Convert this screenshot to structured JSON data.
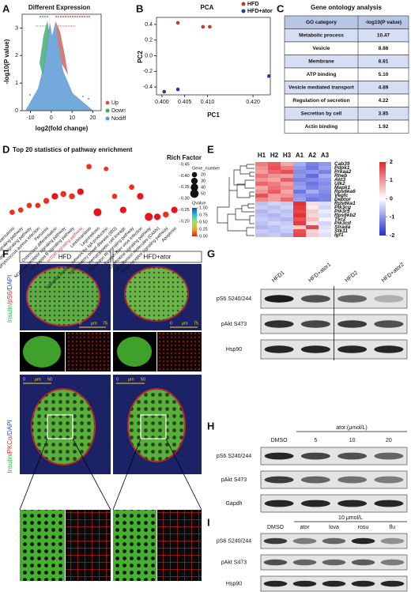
{
  "panel_letters": [
    "A",
    "B",
    "C",
    "D",
    "E",
    "F",
    "G",
    "H",
    "I"
  ],
  "chart_data": [
    {
      "type": "volcano",
      "title": "Different Expression",
      "x_label": "log2(fold change)",
      "y_label": "-log10(P value)",
      "xlim": [
        -14,
        24
      ],
      "ylim": [
        0,
        3.5
      ],
      "xticks": [
        -10,
        0,
        10,
        20
      ],
      "yticks": [
        0,
        1,
        2,
        3
      ],
      "legend": [
        {
          "name": "Up",
          "color": "#c95a5a"
        },
        {
          "name": "Down",
          "color": "#3aa66a"
        },
        {
          "name": "Nodiff",
          "color": "#5b9bd5"
        }
      ]
    },
    {
      "type": "scatter",
      "title": "PCA",
      "x_label": "PC1",
      "y_label": "PC2",
      "xlim": [
        0.3988,
        0.4238
      ],
      "ylim": [
        -0.5,
        0.49
      ],
      "xticks": [
        {
          "value": 0.4,
          "label": "0.400"
        },
        {
          "value": 0.405,
          "label": "0.405"
        },
        {
          "value": 0.41,
          "label": "0.410"
        },
        {
          "value": 0.42,
          "label": "0.420"
        }
      ],
      "yticks": [
        {
          "value": -0.4,
          "label": "-0.4"
        },
        {
          "value": -0.2,
          "label": "-0.2"
        },
        {
          "value": 0,
          "label": "0.0"
        },
        {
          "value": 0.2,
          "label": "0.2"
        },
        {
          "value": 0.4,
          "label": "0.4"
        }
      ],
      "series": [
        {
          "name": "HFD",
          "color": "#c0392b",
          "x": [
            0.4035,
            0.409,
            0.4105
          ],
          "values": [
            0.42,
            0.37,
            0.37
          ]
        },
        {
          "name": "HFD+ator",
          "color": "#2b35a8",
          "x": [
            0.4005,
            0.4035,
            0.4235
          ],
          "values": [
            -0.46,
            -0.43,
            -0.26
          ]
        }
      ]
    },
    {
      "type": "bubble",
      "title": "Top 20 statistics of pathway enrichment",
      "y_label": "Rich Factor",
      "categories": [
        "Tuberculosis",
        "Toll-like receptor signaling pathway",
        "T cell receptor signaling pathway",
        "Staphylococcus aureus infection",
        "Pertussis",
        "Osteoclast differentiation",
        "NOD-like receptor signaling pathway",
        "NF-kappa B signaling pathway",
        "mTOR signaling pathway",
        "Leishmaniasis",
        "Legionellosis",
        "Intestinal immune network for IgA production",
        "Inflammatory bowel disease (IBD)",
        "Hematopoietic cell lineage",
        "Fc epsilon RI signaling pathway",
        "Epstein-Barr virus infection",
        "Chemokine signaling pathway",
        "Cell adhesion molecules (CAMs)",
        "B cell receptor signaling pathway",
        "Apoptosis"
      ],
      "values": [
        0.24,
        0.25,
        0.27,
        0.27,
        0.29,
        0.31,
        0.32,
        0.31,
        0.33,
        0.44,
        0.24,
        0.43,
        0.31,
        0.25,
        0.35,
        0.31,
        0.22,
        0.22,
        0.23,
        0.25
      ],
      "sizes": [
        20,
        20,
        20,
        20,
        25,
        30,
        25,
        25,
        30,
        20,
        45,
        15,
        20,
        30,
        20,
        30,
        45,
        30,
        25,
        30
      ],
      "qvalues": [
        0.05,
        0.05,
        0.05,
        0.05,
        0.05,
        0,
        0.05,
        0.05,
        0,
        0.05,
        0,
        0.05,
        0.05,
        0,
        0.05,
        0,
        0,
        0,
        0.05,
        0
      ],
      "ylim": [
        0.19,
        0.46
      ],
      "yticks": [
        {
          "value": 0.2,
          "label": "0.20"
        },
        {
          "value": 0.25,
          "label": "0.25"
        },
        {
          "value": 0.3,
          "label": "0.30"
        },
        {
          "value": 0.35,
          "label": "0.35"
        },
        {
          "value": 0.4,
          "label": "0.40"
        },
        {
          "value": 0.45,
          "label": "0.45"
        }
      ],
      "highlight": {
        "category": "mTOR signaling pathway",
        "color": "#e0302a"
      },
      "size_legend": {
        "title": "Gene_number",
        "values": [
          20,
          30,
          40,
          50
        ]
      },
      "color_legend": {
        "title": "Qvalue",
        "colors": [
          "#e8141c",
          "#f5a623",
          "#a8e05f",
          "#29c6d9",
          "#1a3fd1"
        ],
        "ticks": [
          {
            "value": 0,
            "label": "0.00"
          },
          {
            "value": 0.25,
            "label": "0.25"
          },
          {
            "value": 0.5,
            "label": "0.50"
          },
          {
            "value": 0.75,
            "label": "0.75"
          },
          {
            "value": 1,
            "label": "1.00"
          }
        ]
      }
    },
    {
      "type": "heatmap",
      "columns": [
        "H1",
        "H2",
        "H3",
        "A1",
        "A2",
        "A3"
      ],
      "rows": [
        "Cab39",
        "Pdpk1",
        "Prkaa2",
        "Rheb",
        "Akt3",
        "Ulk2",
        "Mapk1",
        "Rps6ka6",
        "Vegfc",
        "Deptor",
        "Rps6ka1",
        "Pik3cg",
        "Pik3r5",
        "Rps6kb2",
        "Tsc2",
        "Pik3cd",
        "Strada",
        "Stk11",
        "Igf1"
      ],
      "values": [
        [
          1.2,
          1.5,
          0.8,
          -0.8,
          -1.2,
          -1.0
        ],
        [
          1.0,
          1.6,
          1.2,
          -1.0,
          -1.3,
          -0.9
        ],
        [
          0.9,
          1.4,
          1.6,
          -1.1,
          -1.0,
          -1.2
        ],
        [
          1.3,
          1.0,
          0.9,
          -1.0,
          -1.4,
          -0.8
        ],
        [
          1.0,
          0.8,
          1.5,
          -1.2,
          -1.1,
          -1.0
        ],
        [
          1.4,
          1.2,
          0.9,
          -1.0,
          -1.3,
          -1.1
        ],
        [
          0.8,
          1.3,
          1.1,
          -0.9,
          -1.2,
          -1.0
        ],
        [
          1.0,
          1.5,
          0.8,
          -1.3,
          -0.8,
          -1.1
        ],
        [
          1.6,
          0.9,
          1.0,
          -1.0,
          -1.1,
          -1.2
        ],
        [
          1.1,
          0.9,
          1.4,
          -0.9,
          -1.3,
          -1.2
        ],
        [
          -0.6,
          -0.4,
          -0.5,
          1.9,
          0.3,
          -0.3
        ],
        [
          -0.5,
          -0.6,
          -0.4,
          1.8,
          0.2,
          -0.4
        ],
        [
          -0.7,
          -0.5,
          -0.6,
          1.7,
          0.5,
          -0.2
        ],
        [
          -0.6,
          -0.7,
          -0.5,
          1.9,
          0.4,
          -0.3
        ],
        [
          -0.5,
          -0.6,
          -0.7,
          1.6,
          0.6,
          -0.1
        ],
        [
          -0.6,
          -0.4,
          -0.5,
          1.8,
          0.3,
          -0.4
        ],
        [
          -0.7,
          -0.6,
          -0.4,
          0.5,
          1.7,
          -0.3
        ],
        [
          -0.5,
          -0.6,
          -0.5,
          1.6,
          0.4,
          -0.2
        ],
        [
          -0.6,
          -0.5,
          -0.7,
          1.7,
          0.5,
          -0.3
        ]
      ],
      "colorlim": [
        -2,
        2
      ],
      "colorbar_ticks": [
        -2,
        -1,
        0,
        1,
        2
      ],
      "colors": [
        "#1f2fd6",
        "#ffffff",
        "#e3262a"
      ]
    }
  ],
  "table": {
    "title": "Gene ontology analysis",
    "header": [
      "GO category",
      "-log10(P value)"
    ],
    "rows": [
      [
        "Metabolic process",
        "10.47"
      ],
      [
        "Vesicle",
        "8.86"
      ],
      [
        "Membrane",
        "8.81"
      ],
      [
        "ATP binding",
        "5.10"
      ],
      [
        "Vesicle mediated transport",
        "4.89"
      ],
      [
        "Regulation of secretion",
        "4.22"
      ],
      [
        "Secretion by cell",
        "3.85"
      ],
      [
        "Actin binding",
        "1.92"
      ]
    ]
  },
  "micrographs": {
    "columns": [
      "HFD",
      "HFD+ator"
    ],
    "stain_labels": [
      [
        "Insulin",
        "/pS6",
        "/DAPI"
      ],
      [
        "Insulin",
        "/PKCα",
        "/DAPI"
      ]
    ],
    "stain_colors": [
      "#2bb24c",
      "#e0242a",
      "#2a4fd8"
    ],
    "scale_labels": [
      [
        "0",
        "μm",
        "75"
      ],
      [
        "0",
        "μm",
        "50"
      ]
    ]
  },
  "blots": [
    {
      "lanes": [
        "HFD1",
        "HFD+ator1",
        "HFD2",
        "HFD+ator2"
      ],
      "rows": [
        "pS6 S240/244",
        "pAkt S473",
        "Hsp90"
      ]
    },
    {
      "header": "ator.(μmol/L)",
      "lanes": [
        "DMSO",
        "5",
        "10",
        "20"
      ],
      "rows": [
        "pS6 S240/244",
        "pAkt S473",
        "Gapdh"
      ]
    },
    {
      "header": "10 μmol/L",
      "lanes": [
        "DMSO",
        "ator",
        "lova",
        "rosu",
        "flu"
      ],
      "rows": [
        "pS6 S240/244",
        "pAkt S473",
        "Hsp90"
      ]
    }
  ]
}
